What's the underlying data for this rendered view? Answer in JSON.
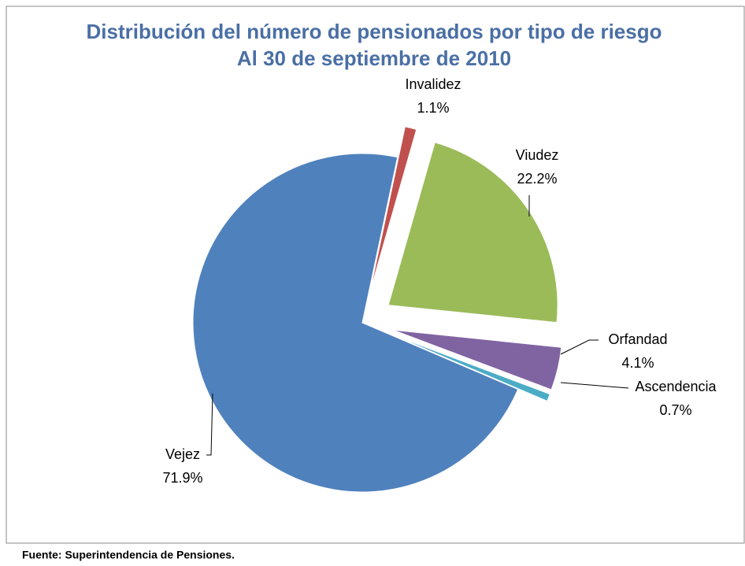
{
  "chart_data": {
    "type": "pie",
    "title": "Distribución del número de pensionados por tipo de riesgo",
    "subtitle": "Al 30 de septiembre de 2010",
    "categories": [
      "Invalidez",
      "Viudez",
      "Orfandad",
      "Ascendencia",
      "Vejez"
    ],
    "values": [
      1.1,
      22.2,
      4.1,
      0.7,
      71.9
    ],
    "value_labels": [
      "1.1%",
      "22.2%",
      "4.1%",
      "0.7%",
      "71.9%"
    ],
    "colors": [
      "#c0504d",
      "#9bbb59",
      "#8064a2",
      "#4bacc6",
      "#4f81bd"
    ],
    "source": "Fuente: Superintendencia de Pensiones."
  }
}
